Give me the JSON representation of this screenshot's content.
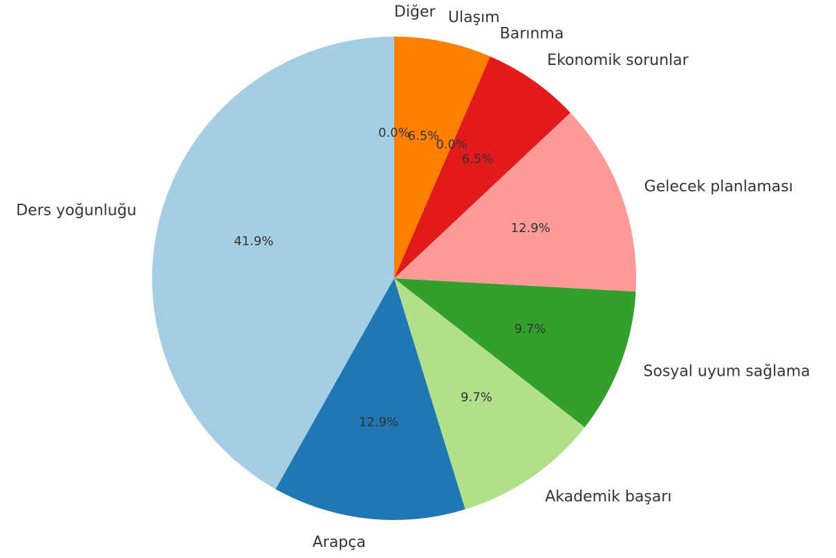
{
  "chart_data": {
    "type": "pie",
    "categories": [
      "Ders yoğunluğu",
      "Arapça",
      "Akademik başarı",
      "Sosyal uyum sağlama",
      "Gelecek planlaması",
      "Ekonomik sorunlar",
      "Barınma",
      "Ulaşım",
      "Diğer"
    ],
    "values": [
      41.9,
      12.9,
      9.7,
      9.7,
      12.9,
      6.5,
      0.0,
      6.5,
      0.0
    ],
    "value_labels": [
      "41.9%",
      "12.9%",
      "9.7%",
      "9.7%",
      "12.9%",
      "6.5%",
      "0.0%",
      "6.5%",
      "0.0%"
    ],
    "colors": [
      "#a6cee3",
      "#1f78b4",
      "#b2df8a",
      "#33a02c",
      "#fb9a99",
      "#e31a1c",
      "#fdbf6f",
      "#ff7f00",
      "#cab2d6"
    ],
    "startangle": 90
  }
}
